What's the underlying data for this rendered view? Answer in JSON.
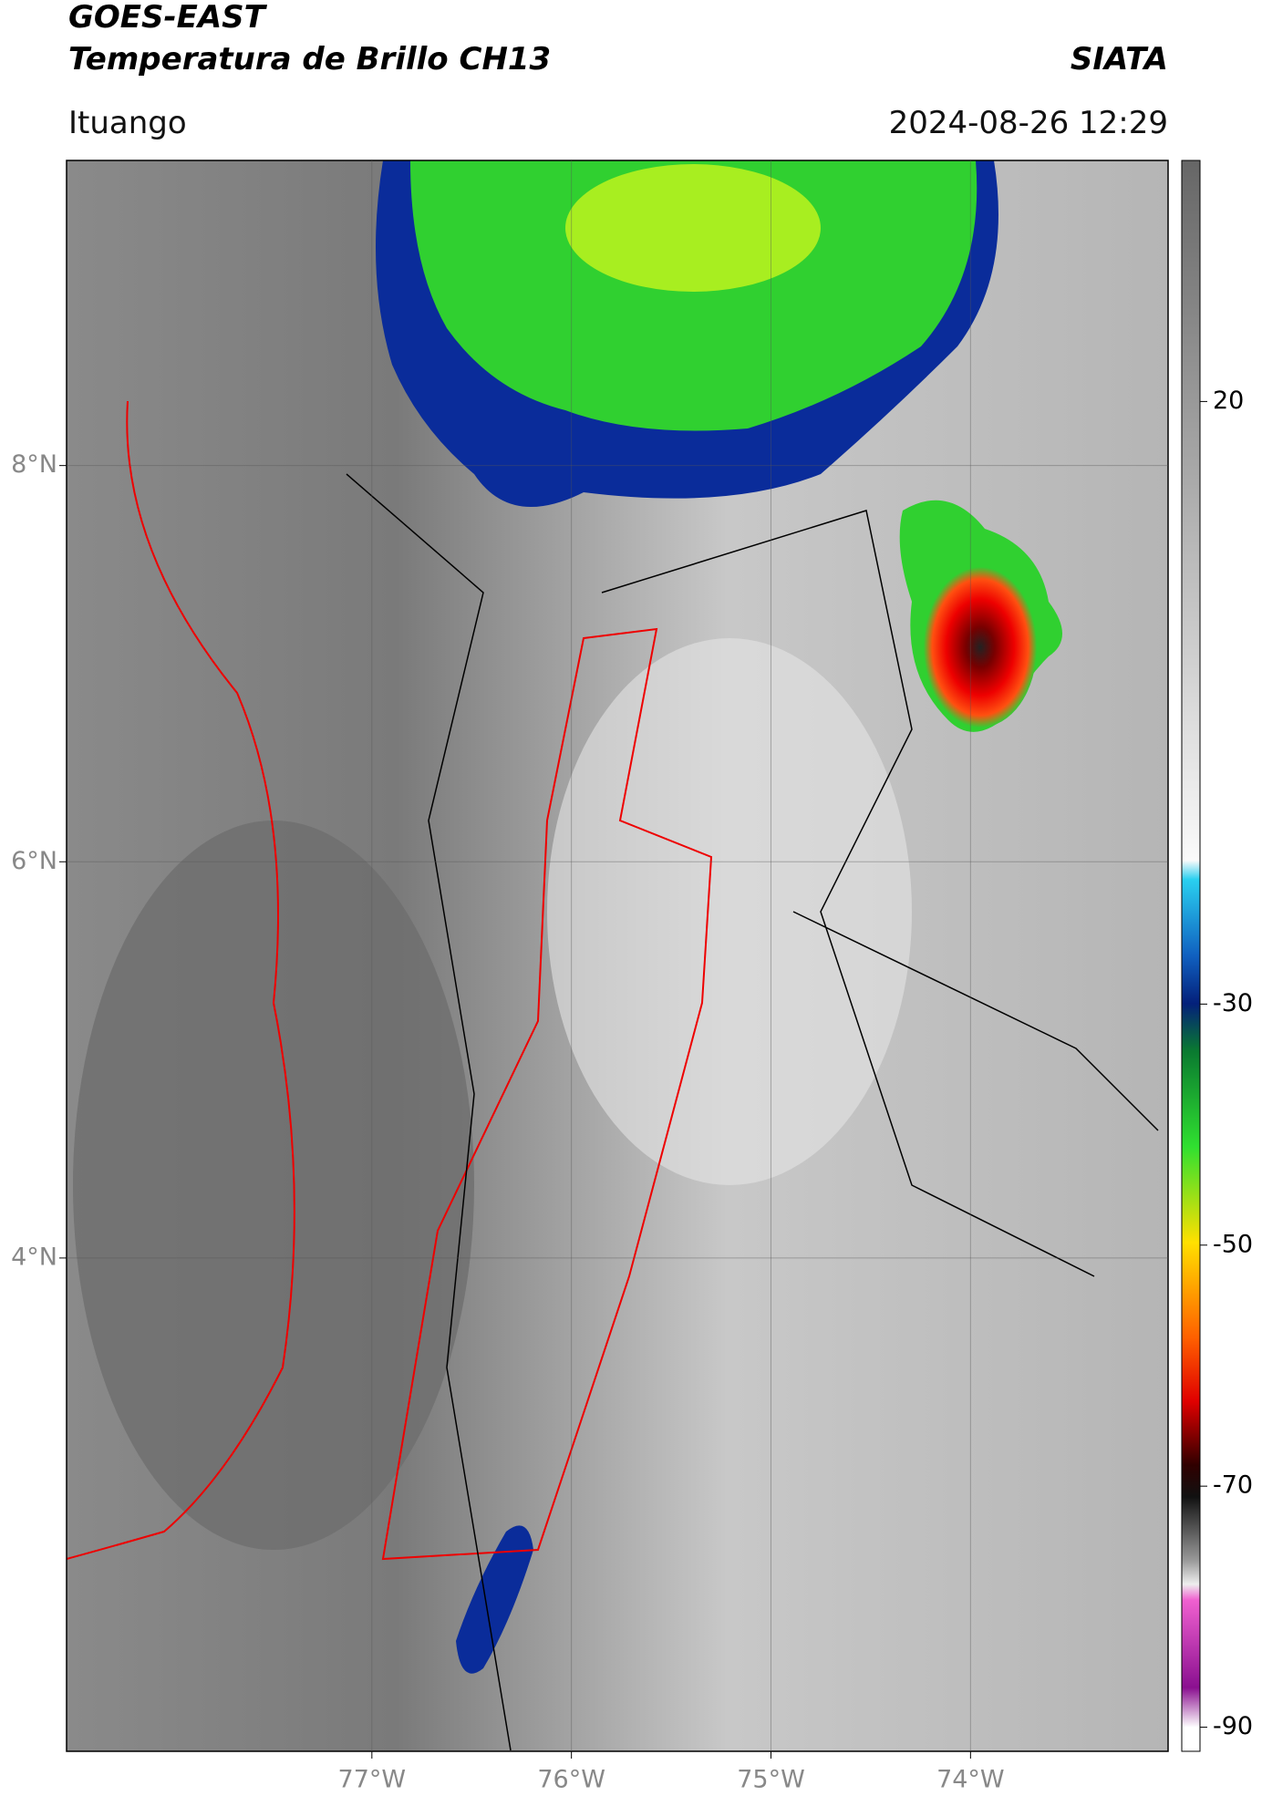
{
  "header": {
    "title": "GOES-EAST",
    "subtitle": "Temperatura de Brillo CH13",
    "organization": "SIATA",
    "location": "Ituango",
    "datetime": "2024-08-26 12:29"
  },
  "map": {
    "xlim": [
      -78.53,
      -73.01
    ],
    "ylim": [
      1.51,
      9.54
    ],
    "xticks": [
      {
        "value": -77,
        "label": "77°W"
      },
      {
        "value": -76,
        "label": "76°W"
      },
      {
        "value": -75,
        "label": "75°W"
      },
      {
        "value": -74,
        "label": "74°W"
      }
    ],
    "yticks": [
      {
        "value": 4,
        "label": "4°N"
      },
      {
        "value": 6,
        "label": "6°N"
      },
      {
        "value": 8,
        "label": "8°N"
      }
    ],
    "grid": true
  },
  "colorbar": {
    "lim": [
      -92,
      40
    ],
    "ticks": [
      20,
      -30,
      -50,
      -70,
      -90
    ]
  }
}
